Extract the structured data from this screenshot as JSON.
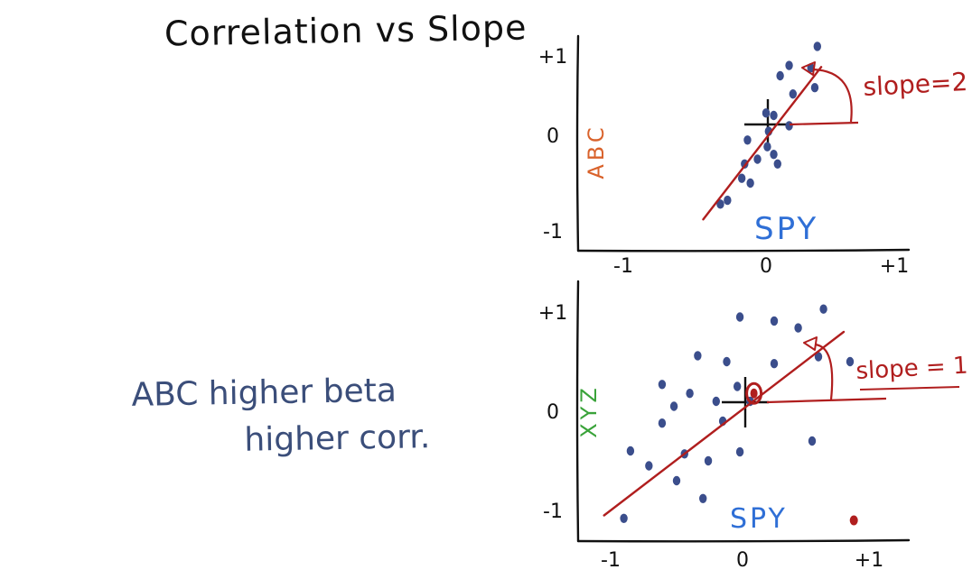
{
  "title": "Correlation vs Slope",
  "note": {
    "line1": "ABC higher beta",
    "line2": "higher corr."
  },
  "colors": {
    "ink": "#111111",
    "dot": "#3b4e8c",
    "fit": "#b01e1e",
    "spy_label": "#2f6fd6",
    "abc_label": "#d9622b",
    "xyz_label": "#3aa33a",
    "note": "#3b4e7a"
  },
  "chart_data": [
    {
      "type": "scatter",
      "title": "",
      "xlabel": "SPY",
      "ylabel": "ABC",
      "xlim": [
        -1.2,
        1.2
      ],
      "ylim": [
        -1.2,
        1.2
      ],
      "x_ticks": [
        "-1",
        "0",
        "+1"
      ],
      "y_ticks": [
        "-1",
        "0",
        "+1"
      ],
      "grid": false,
      "points": [
        {
          "x": 0.4,
          "y": 1.12
        },
        {
          "x": 0.18,
          "y": 0.88
        },
        {
          "x": 0.35,
          "y": 0.85
        },
        {
          "x": 0.11,
          "y": 0.75
        },
        {
          "x": 0.38,
          "y": 0.6
        },
        {
          "x": 0.21,
          "y": 0.52
        },
        {
          "x": 0.0,
          "y": 0.28
        },
        {
          "x": 0.06,
          "y": 0.25
        },
        {
          "x": 0.18,
          "y": 0.12
        },
        {
          "x": 0.02,
          "y": 0.05
        },
        {
          "x": -0.13,
          "y": -0.05
        },
        {
          "x": 0.01,
          "y": -0.12
        },
        {
          "x": 0.06,
          "y": -0.2
        },
        {
          "x": -0.06,
          "y": -0.25
        },
        {
          "x": -0.15,
          "y": -0.3
        },
        {
          "x": 0.09,
          "y": -0.3
        },
        {
          "x": -0.17,
          "y": -0.45
        },
        {
          "x": -0.11,
          "y": -0.5
        },
        {
          "x": -0.27,
          "y": -0.68
        },
        {
          "x": -0.32,
          "y": -0.72
        }
      ],
      "fit_line": {
        "slope": 2,
        "intercept": 0
      },
      "annotation": "slope=2"
    },
    {
      "type": "scatter",
      "title": "",
      "xlabel": "SPY",
      "ylabel": "XYZ",
      "xlim": [
        -1.2,
        1.2
      ],
      "ylim": [
        -1.2,
        1.2
      ],
      "x_ticks": [
        "-1",
        "0",
        "+1"
      ],
      "y_ticks": [
        "-1",
        "0",
        "+1"
      ],
      "grid": false,
      "points": [
        {
          "x": 0.64,
          "y": 1.03
        },
        {
          "x": -0.02,
          "y": 0.95
        },
        {
          "x": 0.25,
          "y": 0.91
        },
        {
          "x": 0.44,
          "y": 0.84
        },
        {
          "x": -0.34,
          "y": 0.56
        },
        {
          "x": -0.12,
          "y": 0.5
        },
        {
          "x": 0.6,
          "y": 0.55
        },
        {
          "x": 0.85,
          "y": 0.5
        },
        {
          "x": 0.25,
          "y": 0.48
        },
        {
          "x": -0.61,
          "y": 0.27
        },
        {
          "x": -0.4,
          "y": 0.18
        },
        {
          "x": -0.04,
          "y": 0.25
        },
        {
          "x": -0.52,
          "y": 0.05
        },
        {
          "x": -0.2,
          "y": 0.1
        },
        {
          "x": 0.06,
          "y": 0.1
        },
        {
          "x": -0.15,
          "y": -0.1
        },
        {
          "x": -0.61,
          "y": -0.12
        },
        {
          "x": 0.55,
          "y": -0.3
        },
        {
          "x": -0.85,
          "y": -0.4
        },
        {
          "x": -0.44,
          "y": -0.43
        },
        {
          "x": -0.26,
          "y": -0.5
        },
        {
          "x": -0.02,
          "y": -0.41
        },
        {
          "x": -0.71,
          "y": -0.55
        },
        {
          "x": -0.5,
          "y": -0.7
        },
        {
          "x": -0.3,
          "y": -0.88
        },
        {
          "x": -0.9,
          "y": -1.08
        }
      ],
      "highlight_points": [
        {
          "x": 0.09,
          "y": 0.18
        },
        {
          "x": 0.88,
          "y": -1.1
        }
      ],
      "fit_line": {
        "slope": 1,
        "intercept": 0
      },
      "annotation": "slope = 1"
    }
  ]
}
